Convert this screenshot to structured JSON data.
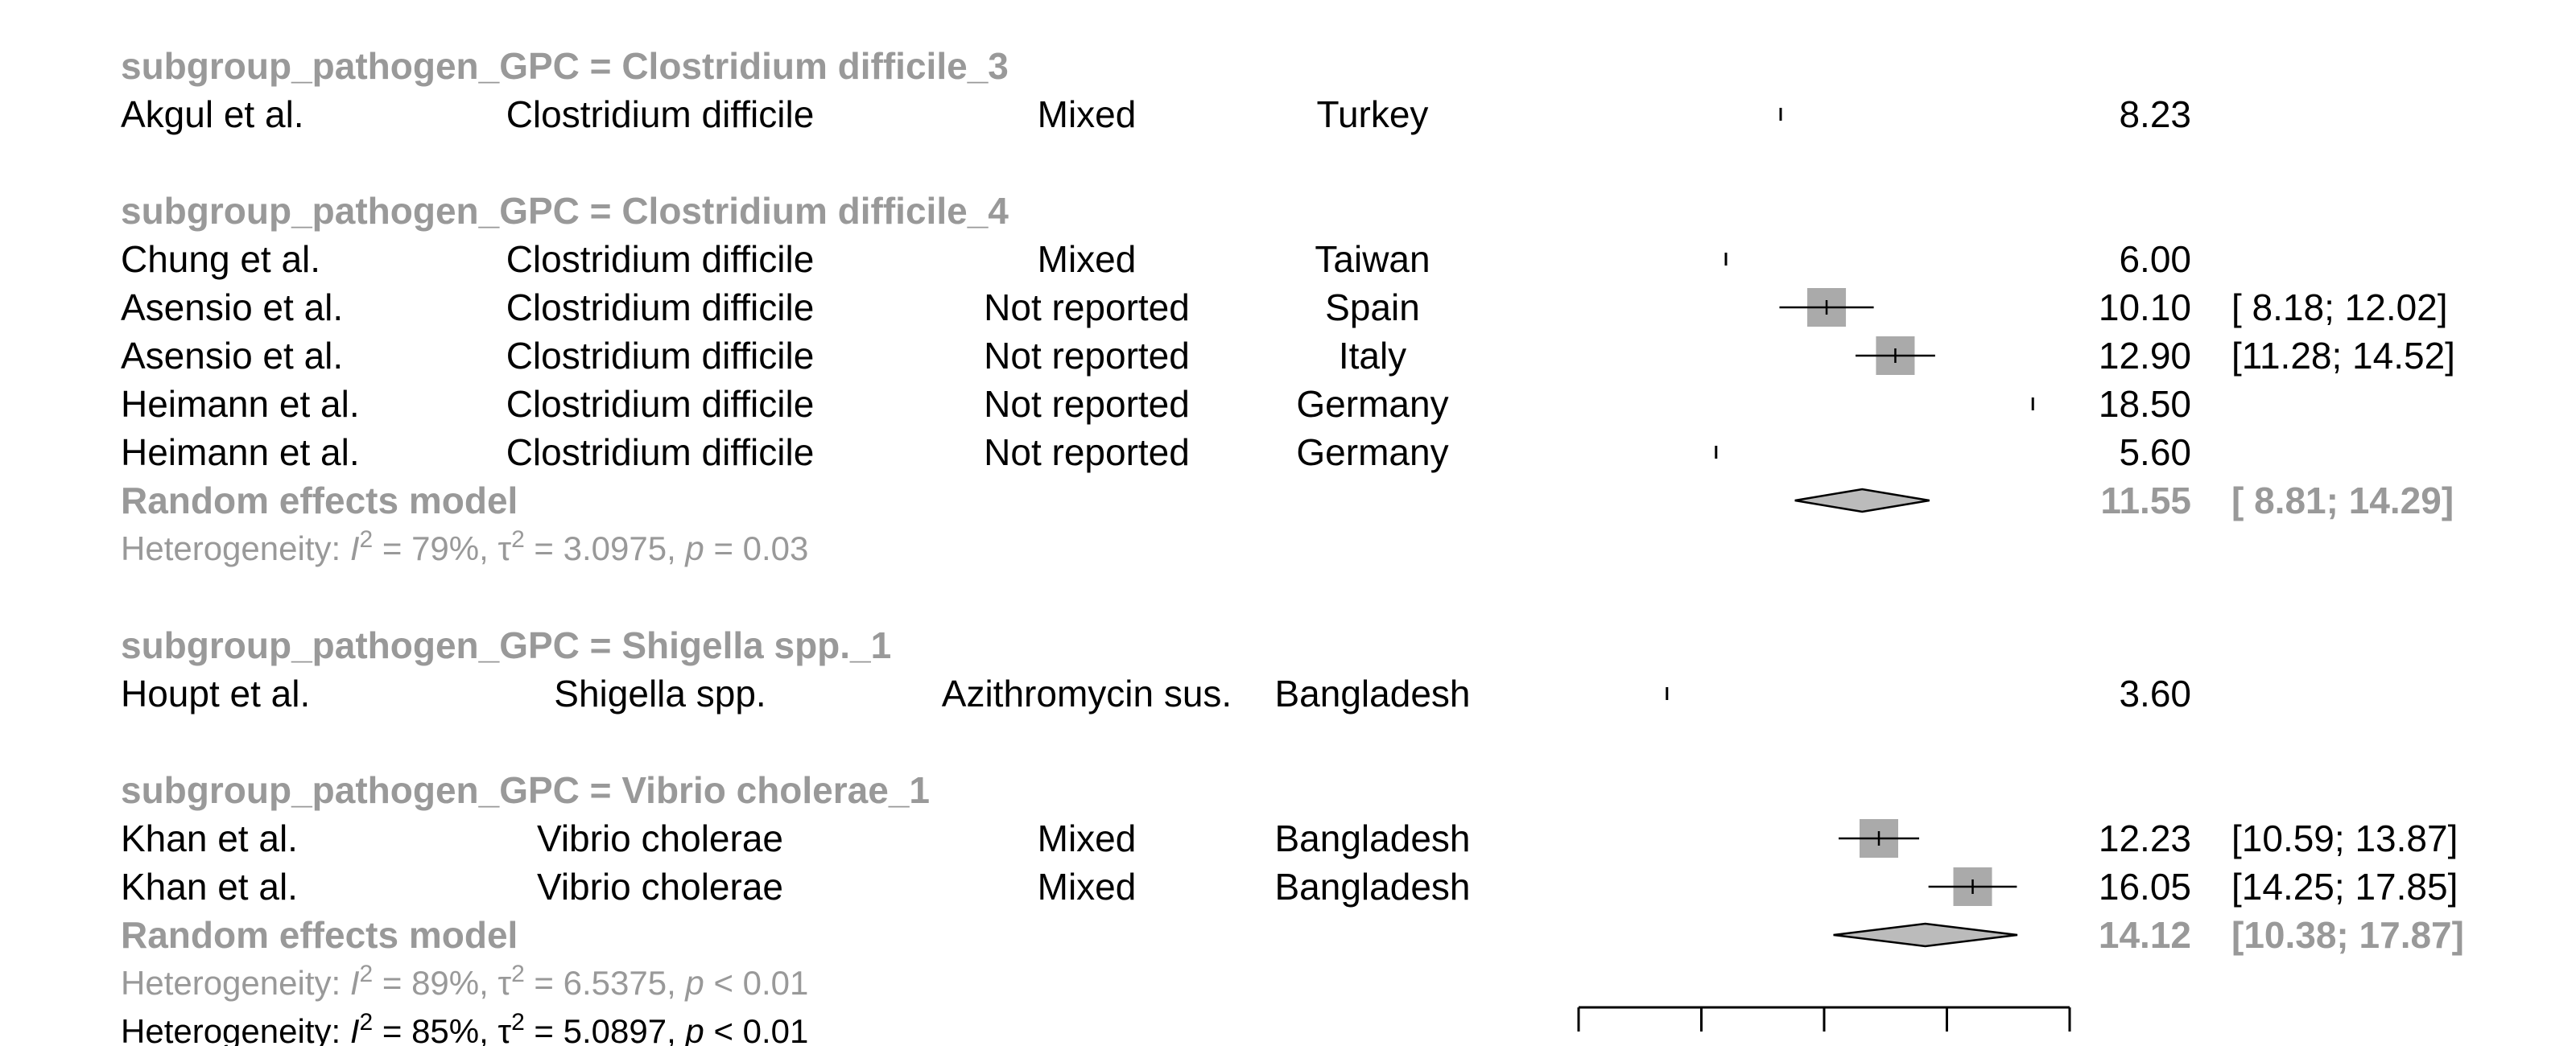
{
  "colors": {
    "text": "#000000",
    "subgroup": "#999999",
    "box": "#aaaaaa",
    "diamond": "#bbbbbb",
    "stroke": "#000000"
  },
  "chart_data": {
    "type": "forest",
    "title": "",
    "xlim": [
      0,
      20
    ],
    "axis_ticks": [
      0,
      5,
      10,
      15,
      20
    ],
    "grid": false,
    "legend": "none",
    "rows": [
      {
        "kind": "subgroup",
        "label": "subgroup_pathogen_GPC = Clostridium difficile_3"
      },
      {
        "kind": "study",
        "study": "Akgul et al.",
        "pathogen": "Clostridium difficile",
        "resistance": "Mixed",
        "country": "Turkey",
        "est": 8.23,
        "ci": null,
        "est_text": "8.23",
        "ci_text": ""
      },
      {
        "kind": "blank"
      },
      {
        "kind": "subgroup",
        "label": "subgroup_pathogen_GPC = Clostridium difficile_4"
      },
      {
        "kind": "study",
        "study": "Chung et al.",
        "pathogen": "Clostridium difficile",
        "resistance": "Mixed",
        "country": "Taiwan",
        "est": 6.0,
        "ci": null,
        "est_text": "6.00",
        "ci_text": ""
      },
      {
        "kind": "study",
        "study": "Asensio et al.",
        "pathogen": "Clostridium difficile",
        "resistance": "Not reported",
        "country": "Spain",
        "est": 10.1,
        "ci": [
          8.18,
          12.02
        ],
        "est_text": "10.10",
        "ci_text": "[ 8.18; 12.02]"
      },
      {
        "kind": "study",
        "study": "Asensio et al.",
        "pathogen": "Clostridium difficile",
        "resistance": "Not reported",
        "country": "Italy",
        "est": 12.9,
        "ci": [
          11.28,
          14.52
        ],
        "est_text": "12.90",
        "ci_text": "[11.28; 14.52]"
      },
      {
        "kind": "study",
        "study": "Heimann et al.",
        "pathogen": "Clostridium difficile",
        "resistance": "Not reported",
        "country": "Germany",
        "est": 18.5,
        "ci": null,
        "est_text": "18.50",
        "ci_text": ""
      },
      {
        "kind": "study",
        "study": "Heimann et al.",
        "pathogen": "Clostridium difficile",
        "resistance": "Not reported",
        "country": "Germany",
        "est": 5.6,
        "ci": null,
        "est_text": "5.60",
        "ci_text": ""
      },
      {
        "kind": "model",
        "label": "Random effects model",
        "est": 11.55,
        "ci": [
          8.81,
          14.29
        ],
        "est_text": "11.55",
        "ci_text": "[ 8.81; 14.29]"
      },
      {
        "kind": "het",
        "prefix": "Heterogeneity: ",
        "i2": "I",
        "eq1": "2",
        "v1": " = 79%, ",
        "tau": "τ",
        "eq2": "2",
        "v2": " = 3.0975, ",
        "p": "p",
        "v3": " = 0.03"
      },
      {
        "kind": "blank"
      },
      {
        "kind": "subgroup",
        "label": "subgroup_pathogen_GPC = Shigella spp._1"
      },
      {
        "kind": "study",
        "study": "Houpt et al.",
        "pathogen": "Shigella spp.",
        "resistance": "Azithromycin sus.",
        "country": "Bangladesh",
        "est": 3.6,
        "ci": null,
        "est_text": "3.60",
        "ci_text": ""
      },
      {
        "kind": "blank"
      },
      {
        "kind": "subgroup",
        "label": "subgroup_pathogen_GPC = Vibrio cholerae_1"
      },
      {
        "kind": "study",
        "study": "Khan et al.",
        "pathogen": "Vibrio cholerae",
        "resistance": "Mixed",
        "country": "Bangladesh",
        "est": 12.23,
        "ci": [
          10.59,
          13.87
        ],
        "est_text": "12.23",
        "ci_text": "[10.59; 13.87]"
      },
      {
        "kind": "study",
        "study": "Khan et al.",
        "pathogen": "Vibrio cholerae",
        "resistance": "Mixed",
        "country": "Bangladesh",
        "est": 16.05,
        "ci": [
          14.25,
          17.85
        ],
        "est_text": "16.05",
        "ci_text": "[14.25; 17.85]"
      },
      {
        "kind": "model",
        "label": "Random effects model",
        "est": 14.12,
        "ci": [
          10.38,
          17.87
        ],
        "est_text": "14.12",
        "ci_text": "[10.38; 17.87]"
      },
      {
        "kind": "het",
        "prefix": "Heterogeneity: ",
        "i2": "I",
        "eq1": "2",
        "v1": " = 89%, ",
        "tau": "τ",
        "eq2": "2",
        "v2": " = 6.5375, ",
        "p": "p",
        "v3": " < 0.01"
      },
      {
        "kind": "het_total",
        "prefix": "Heterogeneity: ",
        "i2": "I",
        "eq1": "2",
        "v1": " = 85%, ",
        "tau": "τ",
        "eq2": "2",
        "v2": " = 5.0897, ",
        "p": "p",
        "v3": " < 0.01"
      }
    ]
  }
}
